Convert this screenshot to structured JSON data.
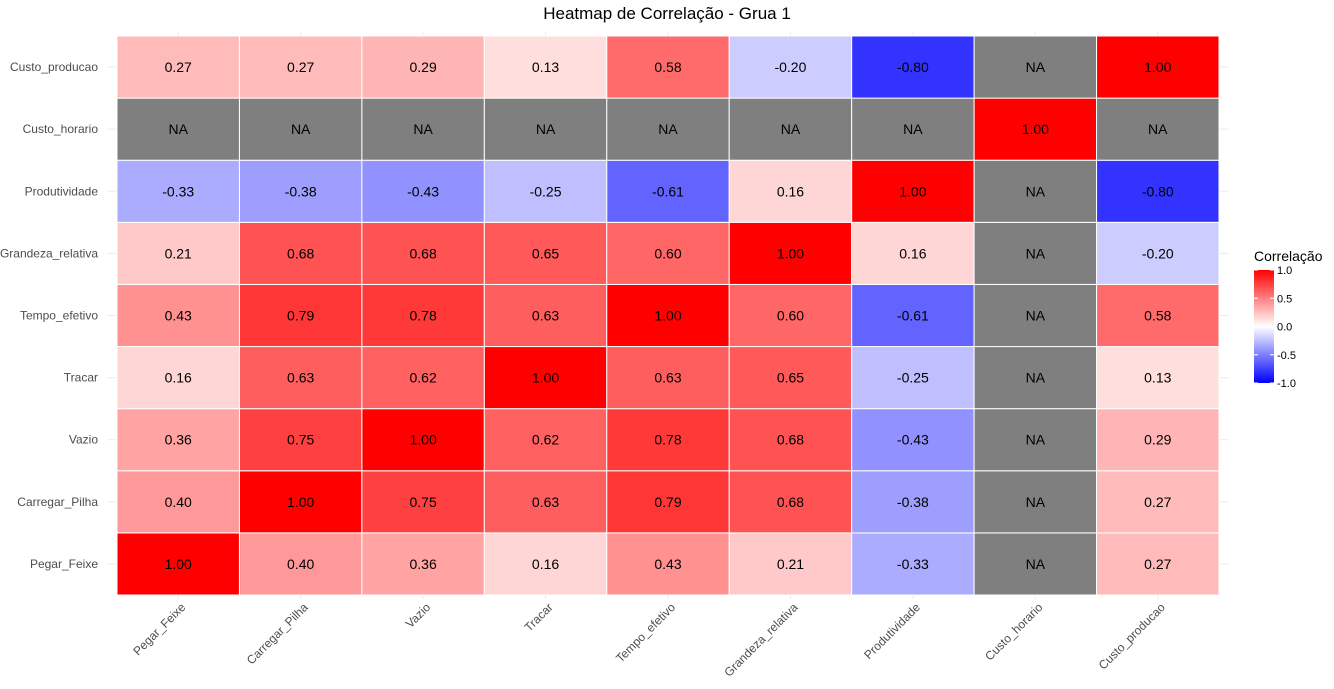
{
  "chart_data": {
    "type": "heatmap",
    "title": "Heatmap de Correlação - Grua 1",
    "xlabel": "",
    "ylabel": "",
    "variables": [
      "Pegar_Feixe",
      "Carregar_Pilha",
      "Vazio",
      "Tracar",
      "Tempo_efetivo",
      "Grandeza_relativa",
      "Produtividade",
      "Custo_horario",
      "Custo_producao"
    ],
    "cell_labels": [
      [
        "1.00",
        "0.40",
        "0.36",
        "0.16",
        "0.43",
        "0.21",
        "-0.33",
        "NA",
        "0.27"
      ],
      [
        "0.40",
        "1.00",
        "0.75",
        "0.63",
        "0.79",
        "0.68",
        "-0.38",
        "NA",
        "0.27"
      ],
      [
        "0.36",
        "0.75",
        "1.00",
        "0.62",
        "0.78",
        "0.68",
        "-0.43",
        "NA",
        "0.29"
      ],
      [
        "0.16",
        "0.63",
        "0.62",
        "1.00",
        "0.63",
        "0.65",
        "-0.25",
        "NA",
        "0.13"
      ],
      [
        "0.43",
        "0.79",
        "0.78",
        "0.63",
        "1.00",
        "0.60",
        "-0.61",
        "NA",
        "0.58"
      ],
      [
        "0.21",
        "0.68",
        "0.68",
        "0.65",
        "0.60",
        "1.00",
        "0.16",
        "NA",
        "-0.20"
      ],
      [
        "-0.33",
        "-0.38",
        "-0.43",
        "-0.25",
        "-0.61",
        "0.16",
        "1.00",
        "NA",
        "-0.80"
      ],
      [
        "NA",
        "NA",
        "NA",
        "NA",
        "NA",
        "NA",
        "NA",
        "1.00",
        "NA"
      ],
      [
        "0.27",
        "0.27",
        "0.29",
        "0.13",
        "0.58",
        "-0.20",
        "-0.80",
        "NA",
        "1.00"
      ]
    ],
    "legend": {
      "title": "Correlação",
      "ticks": [
        "1.0",
        "0.5",
        "0.0",
        "-0.5",
        "-1.0"
      ],
      "range": [
        -1,
        1
      ],
      "low_color": "#0000ff",
      "mid_color": "#ffffff",
      "high_color": "#ff0000",
      "na_color": "#7f7f7f",
      "placement": "right"
    },
    "grid": true
  }
}
